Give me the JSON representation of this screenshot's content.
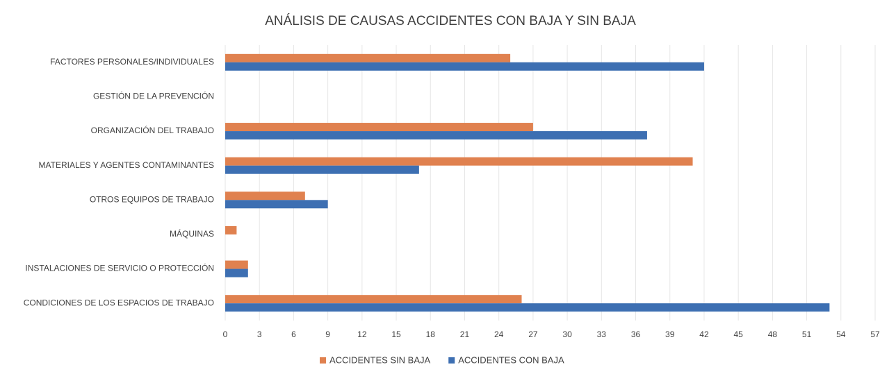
{
  "chart_data": {
    "type": "bar",
    "orientation": "horizontal",
    "title": "ANÁLISIS DE CAUSAS ACCIDENTES CON BAJA Y SIN BAJA",
    "categories": [
      "FACTORES PERSONALES/INDIVIDUALES",
      "GESTIÓN DE LA PREVENCIÓN",
      "ORGANIZACIÓN DEL TRABAJO",
      "MATERIALES Y AGENTES CONTAMINANTES",
      "OTROS EQUIPOS DE TRABAJO",
      "MÁQUINAS",
      "INSTALACIONES DE SERVICIO O PROTECCIÓN",
      "CONDICIONES DE LOS ESPACIOS DE TRABAJO"
    ],
    "series": [
      {
        "name": "ACCIDENTES SIN BAJA",
        "color": "#e0814f",
        "values": [
          25,
          0,
          27,
          41,
          7,
          1,
          2,
          26
        ]
      },
      {
        "name": "ACCIDENTES CON BAJA",
        "color": "#3d6fb2",
        "values": [
          42,
          0,
          37,
          17,
          9,
          0,
          2,
          53
        ]
      }
    ],
    "xlim": [
      0,
      57
    ],
    "xticks": [
      0,
      3,
      6,
      9,
      12,
      15,
      18,
      21,
      24,
      27,
      30,
      33,
      36,
      39,
      42,
      45,
      48,
      51,
      54,
      57
    ],
    "grid": true,
    "legend": "bottom"
  }
}
